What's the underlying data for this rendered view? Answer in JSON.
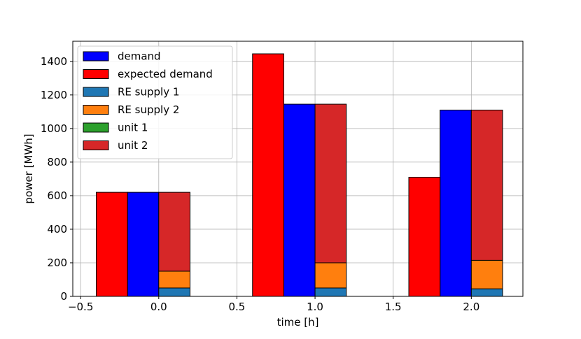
{
  "chart_data": {
    "type": "bar",
    "xlabel": "time [h]",
    "ylabel": "power [MWh]",
    "xlim": [
      -0.55,
      2.33
    ],
    "ylim": [
      0,
      1520
    ],
    "xticks": [
      -0.5,
      0.0,
      0.5,
      1.0,
      1.5,
      2.0
    ],
    "xtick_labels": [
      "−0.5",
      "0.0",
      "0.5",
      "1.0",
      "1.5",
      "2.0"
    ],
    "yticks": [
      0,
      200,
      400,
      600,
      800,
      1000,
      1200,
      1400
    ],
    "ytick_labels": [
      "0",
      "200",
      "400",
      "600",
      "800",
      "1000",
      "1200",
      "1400"
    ],
    "grid": true,
    "legend_position": "top-left",
    "x": [
      0.0,
      1.0,
      2.0
    ],
    "bar_width": 0.2,
    "series": [
      {
        "name": "demand",
        "color": "#0000ff",
        "offset": -0.1,
        "values": [
          620,
          1145,
          1110
        ]
      },
      {
        "name": "expected demand",
        "color": "#ff0000",
        "offset": -0.3,
        "values": [
          620,
          1445,
          710
        ]
      },
      {
        "name": "RE supply 1",
        "color": "#1f77b4",
        "offset": 0.1,
        "stack": "supply",
        "values": [
          50,
          50,
          45
        ]
      },
      {
        "name": "RE supply 2",
        "color": "#ff7f0e",
        "offset": 0.1,
        "stack": "supply",
        "values": [
          100,
          150,
          170
        ]
      },
      {
        "name": "unit 1",
        "color": "#2ca02c",
        "offset": 0.1,
        "stack": "supply",
        "values": [
          0,
          0,
          0
        ]
      },
      {
        "name": "unit 2",
        "color": "#d62728",
        "offset": 0.1,
        "stack": "supply",
        "values": [
          470,
          945,
          895
        ]
      }
    ]
  }
}
